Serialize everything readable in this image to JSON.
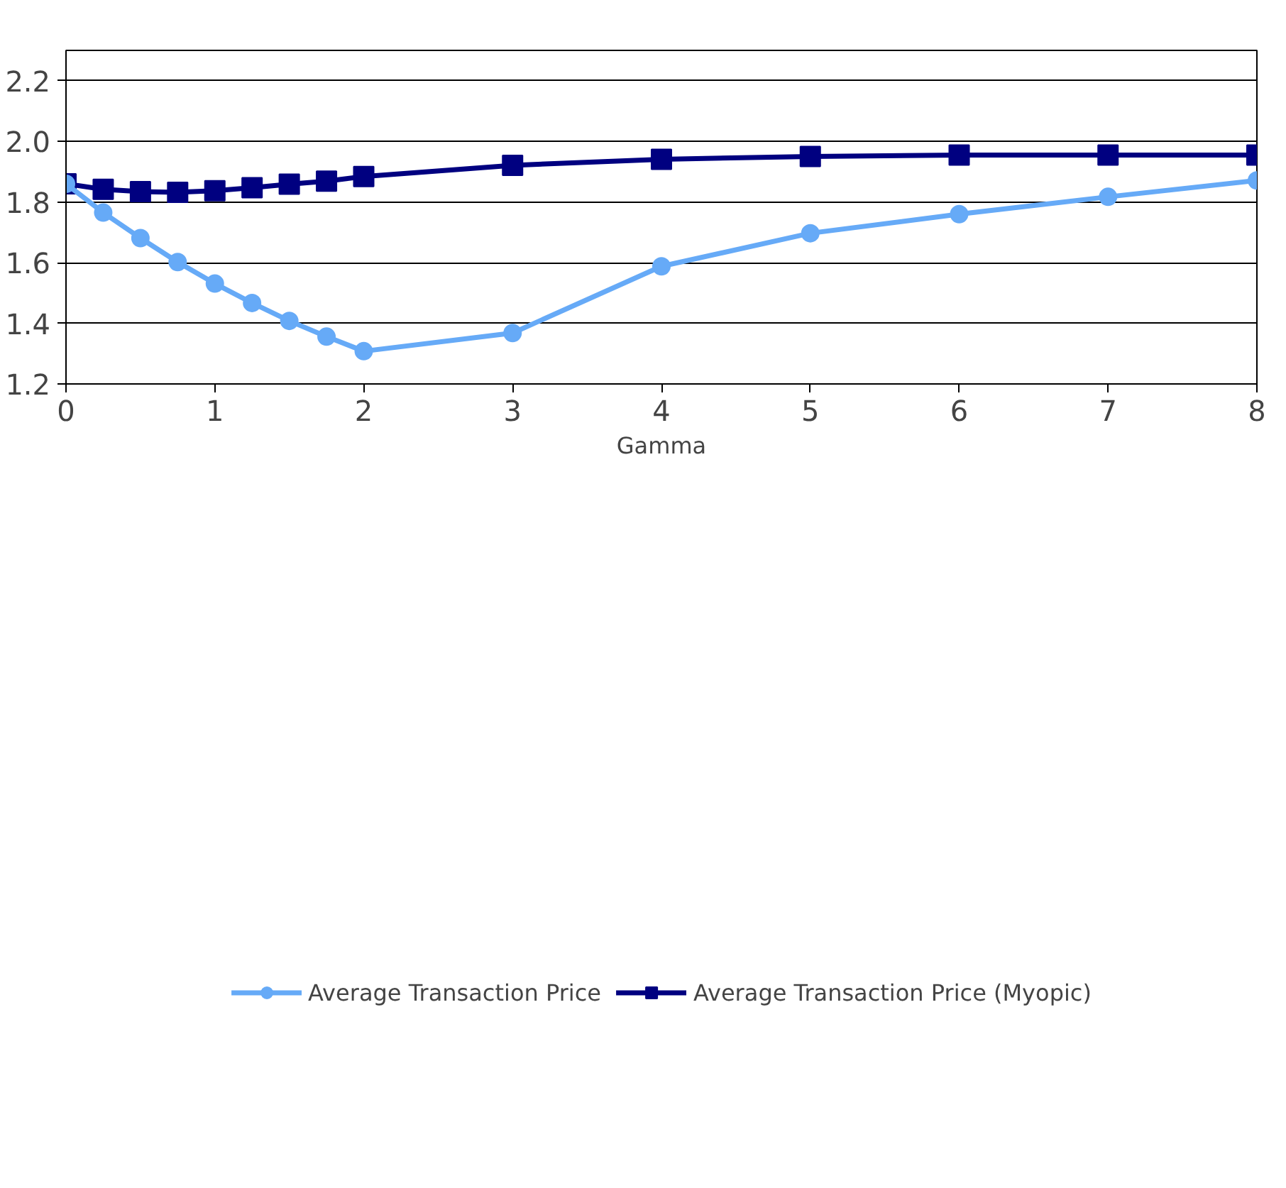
{
  "chart_data": {
    "type": "line",
    "xlabel": "Gamma",
    "x": [
      0,
      0.25,
      0.5,
      0.75,
      1,
      1.25,
      1.5,
      1.75,
      2,
      3,
      4,
      5,
      6,
      7,
      8
    ],
    "series": [
      {
        "name": "Average Transaction Price",
        "color": "#66aaf7",
        "marker": "circle",
        "values": [
          1.86,
          1.765,
          1.681,
          1.602,
          1.531,
          1.467,
          1.408,
          1.356,
          1.308,
          1.368,
          1.588,
          1.697,
          1.76,
          1.817,
          1.871
        ]
      },
      {
        "name": "Average Transaction Price (Myopic)",
        "color": "#000080",
        "marker": "square",
        "values": [
          1.86,
          1.842,
          1.834,
          1.832,
          1.837,
          1.847,
          1.859,
          1.869,
          1.884,
          1.921,
          1.941,
          1.95,
          1.955,
          1.955,
          1.955
        ]
      }
    ],
    "xlim": [
      0,
      8
    ],
    "xticks": [
      0,
      1,
      2,
      3,
      4,
      5,
      6,
      7,
      8
    ],
    "ylim": [
      1.2,
      2.3
    ],
    "yticks": [
      {
        "value": 1.2,
        "label": "1.2"
      },
      {
        "value": 1.4,
        "label": "1.4"
      },
      {
        "value": 1.6,
        "label": "1.6"
      },
      {
        "value": 1.8,
        "label": "1.8"
      },
      {
        "value": 2.0,
        "label": "2.0"
      },
      {
        "value": 2.2,
        "label": "2.2"
      }
    ],
    "grid": "y",
    "legend": "bottom",
    "line_style": "solid"
  }
}
